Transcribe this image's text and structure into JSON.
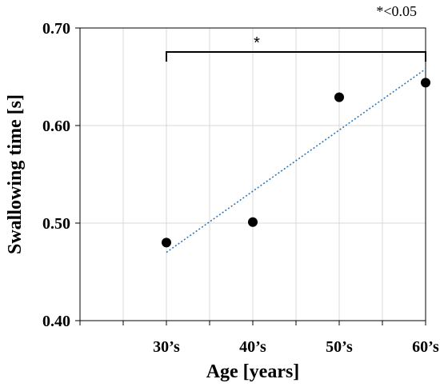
{
  "chart_data": {
    "type": "scatter",
    "categories": [
      "30’s",
      "40’s",
      "50’s",
      "60’s"
    ],
    "values": [
      0.48,
      0.501,
      0.629,
      0.644
    ],
    "trendline": {
      "start": 0.47,
      "end": 0.658
    },
    "xlabel": "Age [years]",
    "ylabel": "Swallowing time [s]",
    "ylim": [
      0.4,
      0.7
    ],
    "yticks": [
      "0.40",
      "0.50",
      "0.60",
      "0.70"
    ],
    "grid": true,
    "annotations": {
      "significance_note": "*<0.05",
      "bracket_label": "*",
      "bracket_from": "30’s",
      "bracket_to": "60’s"
    },
    "marker_color": "#000000",
    "trendline_color": "#2e75b6"
  }
}
